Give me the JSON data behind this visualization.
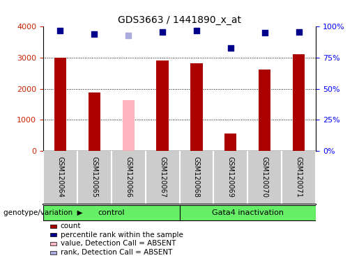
{
  "title": "GDS3663 / 1441890_x_at",
  "samples": [
    "GSM120064",
    "GSM120065",
    "GSM120066",
    "GSM120067",
    "GSM120068",
    "GSM120069",
    "GSM120070",
    "GSM120071"
  ],
  "count_values": [
    3000,
    1870,
    null,
    2920,
    2820,
    560,
    2620,
    3120
  ],
  "count_absent_values": [
    null,
    null,
    1640,
    null,
    null,
    null,
    null,
    null
  ],
  "percentile_values": [
    97,
    94,
    null,
    96,
    97,
    83,
    95,
    96
  ],
  "percentile_absent_values": [
    null,
    null,
    93,
    null,
    null,
    null,
    null,
    null
  ],
  "bar_color_normal": "#AA0000",
  "bar_color_absent": "#FFB6C1",
  "dot_color_normal": "#00008B",
  "dot_color_absent": "#AAAADD",
  "ylim_left": [
    0,
    4000
  ],
  "ylim_right": [
    0,
    100
  ],
  "yticks_left": [
    0,
    1000,
    2000,
    3000,
    4000
  ],
  "yticks_right": [
    0,
    25,
    50,
    75,
    100
  ],
  "yticklabels_right": [
    "0%",
    "25%",
    "50%",
    "75%",
    "100%"
  ],
  "groups": [
    {
      "label": "control",
      "start": 0,
      "end": 3,
      "color": "#66EE66"
    },
    {
      "label": "Gata4 inactivation",
      "start": 4,
      "end": 7,
      "color": "#66EE66"
    }
  ],
  "group_label_prefix": "genotype/variation",
  "legend_items": [
    {
      "label": "count",
      "color": "#AA0000"
    },
    {
      "label": "percentile rank within the sample",
      "color": "#00008B"
    },
    {
      "label": "value, Detection Call = ABSENT",
      "color": "#FFB6C1"
    },
    {
      "label": "rank, Detection Call = ABSENT",
      "color": "#AAAADD"
    }
  ],
  "bar_width": 0.35,
  "dot_size": 40,
  "background_color": "#FFFFFF",
  "tick_label_bg": "#CCCCCC",
  "grid_yticks": [
    1000,
    2000,
    3000
  ]
}
